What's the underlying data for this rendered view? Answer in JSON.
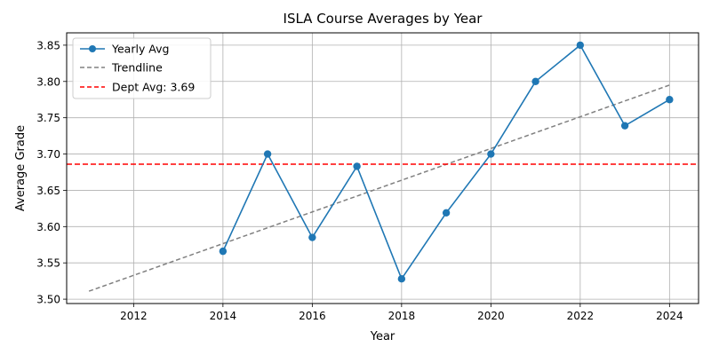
{
  "chart_data": {
    "type": "line",
    "title": "ISLA Course Averages by Year",
    "xlabel": "Year",
    "ylabel": "Average Grade",
    "xlim": [
      2010.5,
      2024.65
    ],
    "ylim": [
      3.494,
      3.867
    ],
    "x_ticks": [
      2012,
      2014,
      2016,
      2018,
      2020,
      2022,
      2024
    ],
    "y_ticks": [
      3.5,
      3.55,
      3.6,
      3.65,
      3.7,
      3.75,
      3.8,
      3.85
    ],
    "grid": true,
    "legend_position": "top-left",
    "series": [
      {
        "name": "Yearly Avg",
        "color": "#1f77b4",
        "style": "solid-markers",
        "x": [
          2014,
          2015,
          2016,
          2017,
          2018,
          2019,
          2020,
          2021,
          2022,
          2023,
          2024
        ],
        "y": [
          3.566,
          3.7,
          3.585,
          3.683,
          3.528,
          3.619,
          3.7,
          3.8,
          3.85,
          3.739,
          3.775
        ]
      },
      {
        "name": "Trendline",
        "color": "#808080",
        "style": "dashed",
        "x": [
          2011,
          2024
        ],
        "y": [
          3.511,
          3.795
        ]
      },
      {
        "name": "Dept Avg: 3.69",
        "color": "#ff0000",
        "style": "dashed-horizontal",
        "y": 3.686
      }
    ]
  }
}
